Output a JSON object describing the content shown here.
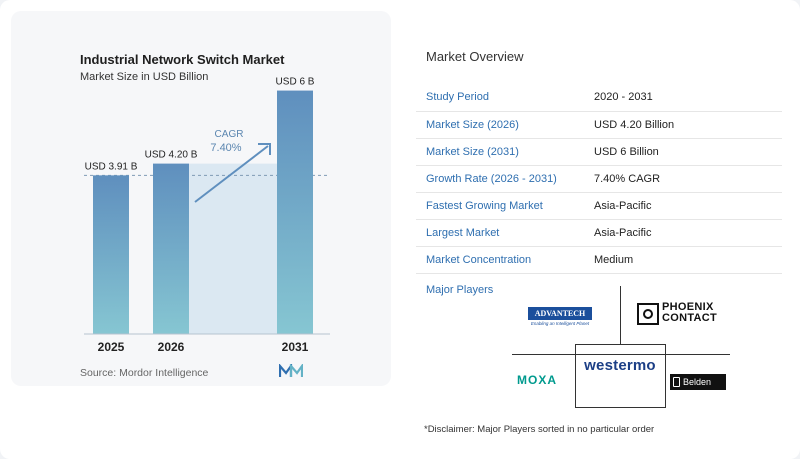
{
  "chart_data": {
    "type": "bar",
    "title": "Industrial Network Switch Market",
    "subtitle": "Market Size in USD Billion",
    "categories": [
      "2025",
      "2026",
      "2031"
    ],
    "values": [
      3.91,
      4.2,
      6.0
    ],
    "data_labels": [
      "USD 3.91 B",
      "USD 4.20 B",
      "USD 6 B"
    ],
    "ylim": [
      0,
      7
    ],
    "annotation": {
      "label": "CAGR",
      "value": "7.40%"
    },
    "bar_colors": [
      "#6694bf",
      "#6694bf",
      "#6694bf"
    ]
  },
  "source": "Source: Mordor Intelligence",
  "overview": {
    "title": "Market Overview",
    "rows": [
      {
        "key": "Study Period",
        "value": "2020 - 2031"
      },
      {
        "key": "Market Size (2026)",
        "value": "USD 4.20 Billion"
      },
      {
        "key": "Market Size (2031)",
        "value": "USD 6 Billion"
      },
      {
        "key": "Growth Rate (2026 - 2031)",
        "value": "7.40% CAGR"
      },
      {
        "key": "Fastest Growing Market",
        "value": "Asia-Pacific"
      },
      {
        "key": "Largest Market",
        "value": "Asia-Pacific"
      },
      {
        "key": "Market Concentration",
        "value": "Medium"
      }
    ]
  },
  "players": {
    "title": "Major Players",
    "logos": {
      "advantech": "ADVANTECH",
      "advantech_tagline": "Enabling an Intelligent Planet",
      "phoenix_1": "PHOENIX",
      "phoenix_2": "CONTACT",
      "westermo": "westermo",
      "moxa": "MOXA",
      "belden": "Belden"
    }
  },
  "disclaimer": "*Disclaimer: Major Players sorted in no particular order",
  "colors": {
    "accent": "#2f6fb0",
    "bar": "#6694bf",
    "bar_light": "#7fbfd0"
  }
}
